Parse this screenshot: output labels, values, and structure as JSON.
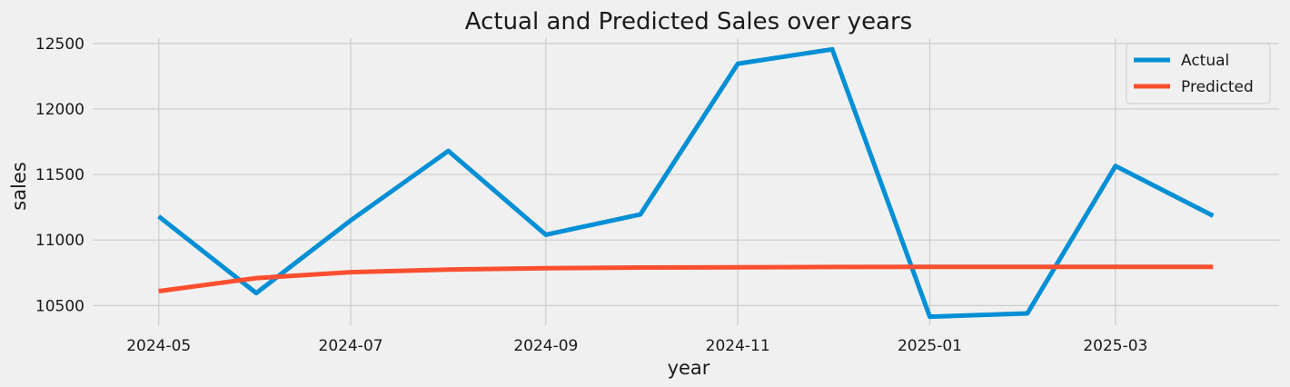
{
  "chart_data": {
    "type": "line",
    "title": "Actual and Predicted Sales over years",
    "xlabel": "year",
    "ylabel": "sales",
    "x": [
      "2024-05-01",
      "2024-06-01",
      "2024-07-01",
      "2024-08-01",
      "2024-09-01",
      "2024-10-01",
      "2024-11-01",
      "2024-12-01",
      "2025-01-01",
      "2025-02-01",
      "2025-03-01",
      "2025-04-01"
    ],
    "xticks": [
      "2024-05",
      "2024-07",
      "2024-09",
      "2024-11",
      "2025-01",
      "2025-03"
    ],
    "yticks": [
      10500,
      11000,
      11500,
      12000,
      12500
    ],
    "ylim": [
      10350,
      12540
    ],
    "xlim": [
      "2024-04-10",
      "2025-04-22"
    ],
    "grid": true,
    "legend_position": "top-right",
    "series": [
      {
        "name": "Actual",
        "color": "#008fd5",
        "values": [
          11180,
          10595,
          11150,
          11680,
          11040,
          11195,
          12345,
          12455,
          10415,
          10440,
          11565,
          11185
        ]
      },
      {
        "name": "Predicted",
        "color": "#fc4f30",
        "values": [
          10610,
          10710,
          10755,
          10775,
          10785,
          10790,
          10792,
          10794,
          10795,
          10795,
          10795,
          10795
        ]
      }
    ]
  }
}
